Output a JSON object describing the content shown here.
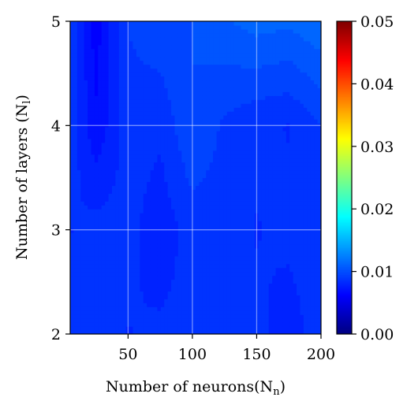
{
  "chart_data": {
    "type": "heatmap",
    "title": "",
    "xlabel": "Number of neurons(N",
    "xlabel_sub": "n",
    "xlabel_tail": ")",
    "ylabel": "Number of layers (N",
    "ylabel_sub": "l",
    "ylabel_tail": ")",
    "xlim": [
      5,
      200
    ],
    "ylim": [
      2,
      5
    ],
    "x_ticks": [
      50,
      100,
      150,
      200
    ],
    "x_tick_labels": [
      "50",
      "100",
      "150",
      "200"
    ],
    "y_ticks": [
      2,
      3,
      4,
      5
    ],
    "y_tick_labels": [
      "2",
      "3",
      "4",
      "5"
    ],
    "grid": true,
    "colormap": "jet",
    "colorbar": {
      "range": [
        0.0,
        0.05
      ],
      "ticks": [
        0.0,
        0.01,
        0.02,
        0.03,
        0.04,
        0.05
      ],
      "tick_labels": [
        "0.00",
        "0.01",
        "0.02",
        "0.03",
        "0.04",
        "0.05"
      ]
    },
    "x": [
      5,
      25,
      50,
      75,
      100,
      125,
      150,
      175,
      200
    ],
    "y": [
      2,
      3,
      4,
      5
    ],
    "z": [
      [
        0.0085,
        0.009,
        0.0083,
        0.0085,
        0.0086,
        0.0087,
        0.0085,
        0.008,
        0.0087
      ],
      [
        0.0083,
        0.0087,
        0.0086,
        0.0078,
        0.0087,
        0.0087,
        0.0083,
        0.0085,
        0.0087
      ],
      [
        0.009,
        0.0068,
        0.0088,
        0.0085,
        0.01,
        0.009,
        0.0085,
        0.0083,
        0.0092
      ],
      [
        0.009,
        0.0062,
        0.0092,
        0.0098,
        0.01,
        0.0107,
        0.0112,
        0.011,
        0.0115
      ]
    ]
  }
}
